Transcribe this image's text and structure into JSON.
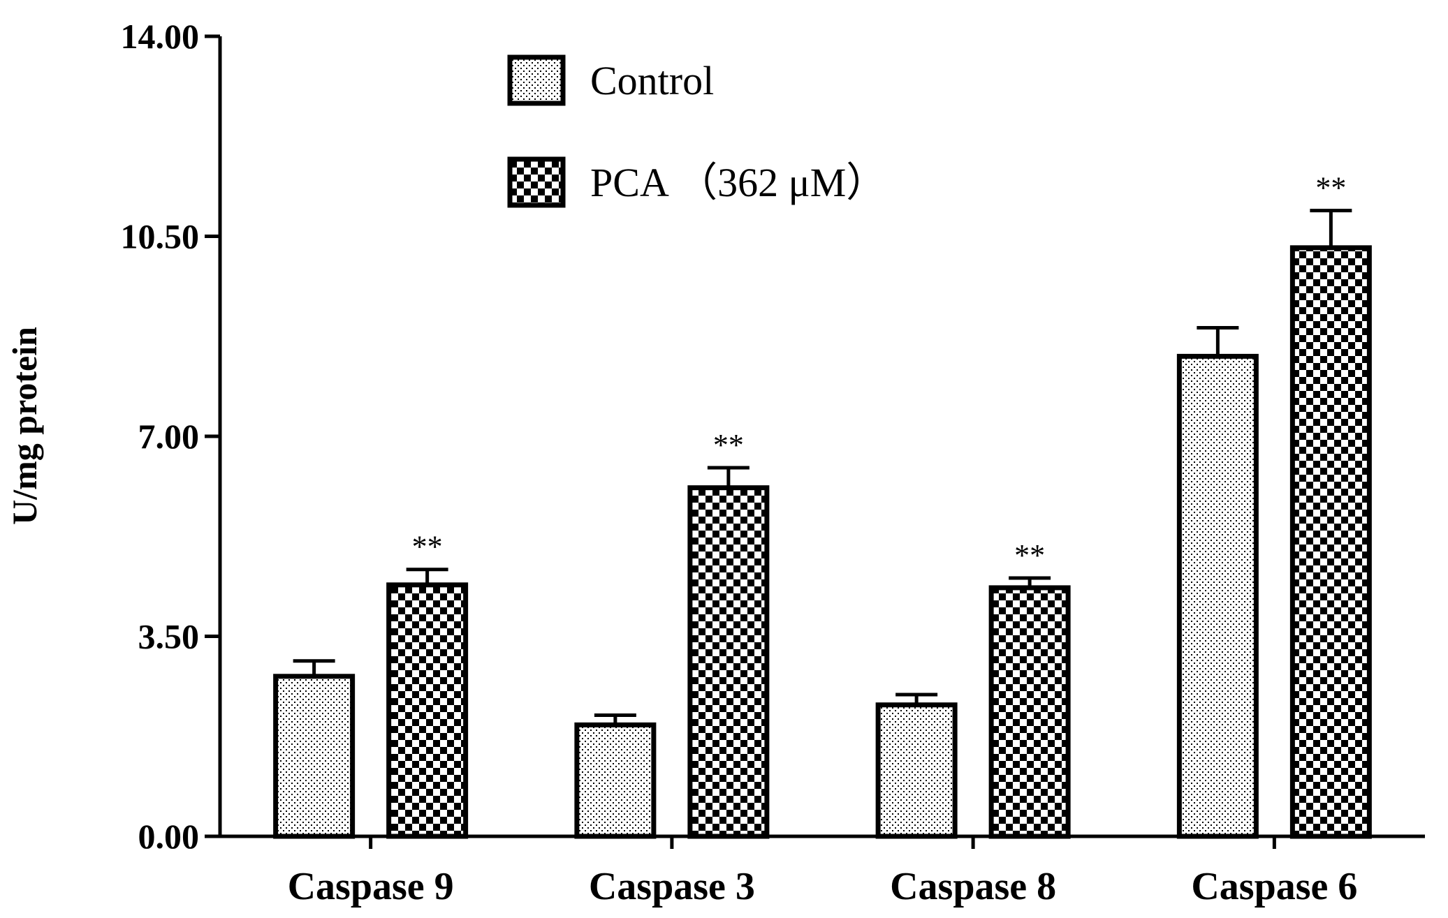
{
  "chart_data": {
    "type": "bar",
    "ylabel": "U/mg protein",
    "xlabel": "",
    "ylim": [
      0,
      14
    ],
    "yticks": [
      "0.00",
      "3.50",
      "7.00",
      "10.50",
      "14.00"
    ],
    "categories": [
      "Caspase 9",
      "Caspase 3",
      "Caspase 8",
      "Caspase 6"
    ],
    "legend_position": "top-center",
    "grid": false,
    "series": [
      {
        "name": "Control",
        "pattern": "dots",
        "values": [
          2.8,
          1.95,
          2.3,
          8.4
        ],
        "errors": [
          0.27,
          0.17,
          0.18,
          0.5
        ]
      },
      {
        "name": "PCA （362 μM）",
        "pattern": "checker",
        "values": [
          4.4,
          6.1,
          4.35,
          10.3
        ],
        "errors": [
          0.27,
          0.35,
          0.17,
          0.65
        ],
        "annotations": [
          "**",
          "**",
          "**",
          "**"
        ]
      }
    ]
  }
}
